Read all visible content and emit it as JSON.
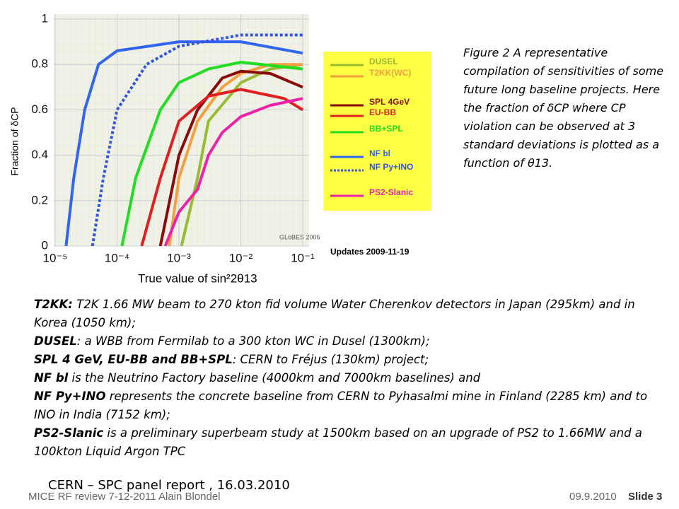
{
  "chart_data": {
    "type": "line",
    "xlabel": "True value of sin²2θ13",
    "ylabel": "Fraction of δCP",
    "xlim": [
      1e-05,
      0.1
    ],
    "xlog": true,
    "xticks": [
      {
        "value": 1e-05,
        "label": "10⁻⁵"
      },
      {
        "value": 0.0001,
        "label": "10⁻⁴"
      },
      {
        "value": 0.001,
        "label": "10⁻³"
      },
      {
        "value": 0.01,
        "label": "10⁻²"
      },
      {
        "value": 0.1,
        "label": "10⁻¹"
      }
    ],
    "ylim": [
      0,
      1
    ],
    "yticks": [
      0,
      0.2,
      0.4,
      0.6,
      0.8,
      1
    ],
    "grid": true,
    "annotations": [
      "GLoBES 2006",
      "Updates 2009-11-19"
    ],
    "series": [
      {
        "name": "DUSEL",
        "color": "#99bb33",
        "x": [
          0.0011,
          0.002,
          0.003,
          0.01,
          0.03,
          0.1
        ],
        "values": [
          0,
          0.3,
          0.55,
          0.72,
          0.78,
          0.8
        ]
      },
      {
        "name": "T2KK(WC)",
        "color": "#f5a040",
        "x": [
          0.0007,
          0.001,
          0.002,
          0.005,
          0.01,
          0.03,
          0.1
        ],
        "values": [
          0,
          0.3,
          0.55,
          0.7,
          0.76,
          0.8,
          0.8
        ]
      },
      {
        "name": "SPL 4GeV",
        "color": "#8b0a0a",
        "x": [
          0.0005,
          0.001,
          0.002,
          0.005,
          0.01,
          0.03,
          0.1
        ],
        "values": [
          0,
          0.4,
          0.6,
          0.74,
          0.77,
          0.76,
          0.7
        ]
      },
      {
        "name": "EU-BB",
        "color": "#e02020",
        "x": [
          0.00025,
          0.0005,
          0.001,
          0.003,
          0.01,
          0.05,
          0.1
        ],
        "values": [
          0,
          0.3,
          0.55,
          0.66,
          0.69,
          0.65,
          0.6
        ]
      },
      {
        "name": "BB+SPL",
        "color": "#22dd22",
        "x": [
          0.00012,
          0.0002,
          0.0005,
          0.001,
          0.003,
          0.01,
          0.1
        ],
        "values": [
          0,
          0.3,
          0.6,
          0.72,
          0.78,
          0.81,
          0.78
        ]
      },
      {
        "name": "NF bl",
        "color": "#3366ee",
        "x": [
          1.5e-05,
          2e-05,
          3e-05,
          5e-05,
          0.0001,
          0.001,
          0.01,
          0.1
        ],
        "values": [
          0,
          0.3,
          0.6,
          0.8,
          0.86,
          0.9,
          0.9,
          0.85
        ]
      },
      {
        "name": "NF Py+INO",
        "color": "#3355dd",
        "style": "dotted",
        "x": [
          4e-05,
          6e-05,
          0.0001,
          0.0003,
          0.001,
          0.01,
          0.1
        ],
        "values": [
          0,
          0.3,
          0.6,
          0.8,
          0.88,
          0.93,
          0.93
        ]
      },
      {
        "name": "PS2-Slanic",
        "color": "#ee22aa",
        "x": [
          0.0006,
          0.001,
          0.002,
          0.003,
          0.005,
          0.01,
          0.03,
          0.1
        ],
        "values": [
          0,
          0.15,
          0.25,
          0.4,
          0.5,
          0.57,
          0.62,
          0.65
        ]
      }
    ]
  },
  "caption": "Figure 2 A representative compilation of sensitivities of some future long baseline projects. Here the fraction of δCP where CP violation can be observed at 3 standard deviations is plotted as a function of θ13.",
  "description": [
    {
      "bold": "T2KK:",
      "text": " T2K 1.66 MW beam to 270 kton fid volume Water Cherenkov detectors in Japan (295km) and in Korea (1050 km);"
    },
    {
      "bold": "DUSEL",
      "text": ": a WBB from Fermilab to a 300 kton WC in Dusel (1300km);"
    },
    {
      "bold": "SPL 4 GeV, EU-BB and BB+SPL",
      "text": ": CERN to Fréjus (130km) project;"
    },
    {
      "bold": "NF bl",
      "text": " is the Neutrino Factory baseline (4000km and 7000km baselines) and"
    },
    {
      "bold": "NF Py+INO",
      "text": " represents the concrete baseline from CERN to Pyhasalmi mine in Finland (2285 km) and to INO in India (7152 km);"
    },
    {
      "bold": "PS2-Slanic",
      "text": " is a preliminary superbeam study at 1500km based on an upgrade of PS2 to 1.66MW and a 100kton Liquid Argon TPC"
    }
  ],
  "footer": {
    "report": "CERN – SPC panel report , 16.03.2010",
    "event": "MICE RF review 7-12-2011 Alain Blondel",
    "date": "09.9.2010",
    "slide": "Slide 3"
  }
}
